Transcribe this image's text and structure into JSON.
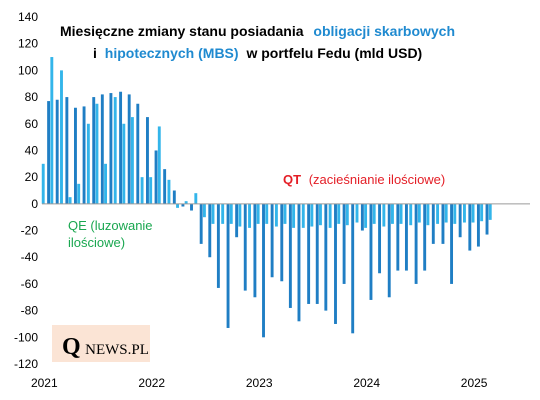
{
  "chart_data": {
    "type": "bar",
    "title_line1_prefix": "Miesięczne zmiany stanu posiadania",
    "title_line1_highlight": "obligacji skarbowych",
    "title_line2_prefix": "i",
    "title_line2_highlight": "hipotecznych (MBS)",
    "title_line2_suffix": "w portfelu Fedu (mld USD)",
    "ylim": [
      -120,
      140
    ],
    "y_ticks": [
      "140",
      "120",
      "100",
      "80",
      "60",
      "40",
      "20",
      "0",
      "-20",
      "-40",
      "-60",
      "-80",
      "-100",
      "-120"
    ],
    "x_ticks": [
      "2021",
      "2022",
      "2023",
      "2024",
      "2025"
    ],
    "x_tick_values": [
      2021,
      2022,
      2023,
      2024,
      2025
    ],
    "series": [
      {
        "name": "obligacje skarbowe",
        "color": "#1f7ec4",
        "x": [
          2021.04,
          2021.12,
          2021.21,
          2021.29,
          2021.37,
          2021.46,
          2021.54,
          2021.62,
          2021.71,
          2021.79,
          2021.87,
          2021.96,
          2022.04,
          2022.12,
          2022.21,
          2022.29,
          2022.37,
          2022.46,
          2022.54,
          2022.62,
          2022.71,
          2022.79,
          2022.87,
          2022.96,
          2023.04,
          2023.12,
          2023.21,
          2023.29,
          2023.37,
          2023.46,
          2023.54,
          2023.62,
          2023.71,
          2023.79,
          2023.87,
          2023.96,
          2024.04,
          2024.12,
          2024.21,
          2024.29,
          2024.37,
          2024.46,
          2024.54,
          2024.62,
          2024.71,
          2024.79,
          2024.87,
          2024.96,
          2025.04,
          2025.12
        ],
        "values": [
          77,
          78,
          80,
          72,
          73,
          80,
          82,
          83,
          84,
          82,
          75,
          65,
          40,
          26,
          10,
          -2,
          -5,
          -30,
          -40,
          -63,
          -93,
          -25,
          -65,
          -70,
          -100,
          -55,
          -58,
          -78,
          -88,
          -75,
          -75,
          -80,
          -90,
          -60,
          -97,
          -20,
          -72,
          -52,
          -70,
          -50,
          -50,
          -60,
          -50,
          -30,
          -30,
          -60,
          -25,
          -35,
          -32,
          -23
        ]
      },
      {
        "name": "hipoteczne (MBS)",
        "color": "#33b5ea",
        "x": [
          2020.99,
          2021.07,
          2021.16,
          2021.24,
          2021.32,
          2021.41,
          2021.49,
          2021.57,
          2021.66,
          2021.74,
          2021.82,
          2021.91,
          2021.99,
          2022.07,
          2022.16,
          2022.24,
          2022.32,
          2022.41,
          2022.49,
          2022.57,
          2022.66,
          2022.74,
          2022.82,
          2022.91,
          2022.99,
          2023.07,
          2023.16,
          2023.24,
          2023.32,
          2023.41,
          2023.49,
          2023.57,
          2023.66,
          2023.74,
          2023.82,
          2023.91,
          2023.99,
          2024.07,
          2024.16,
          2024.24,
          2024.32,
          2024.41,
          2024.49,
          2024.57,
          2024.66,
          2024.74,
          2024.82,
          2024.91,
          2024.99,
          2025.07,
          2025.15
        ],
        "values": [
          30,
          110,
          100,
          5,
          15,
          60,
          75,
          30,
          80,
          60,
          65,
          20,
          20,
          58,
          18,
          -3,
          2,
          8,
          -10,
          -15,
          -15,
          -15,
          -17,
          -18,
          -15,
          -15,
          -17,
          -15,
          -18,
          -18,
          -17,
          -16,
          -18,
          -15,
          -16,
          -14,
          -18,
          -15,
          -17,
          -15,
          -15,
          -16,
          -14,
          -16,
          -15,
          -14,
          -15,
          -14,
          -14,
          -13,
          -12
        ]
      }
    ],
    "annotations": {
      "qe_line1": "QE (luzowanie",
      "qe_line2": "ilościowe)",
      "qt_prefix": "QT",
      "qt_text": "(zacieśnianie ilościowe)"
    },
    "colors": {
      "qe": "#1aa750",
      "qt": "#e41e26",
      "title_highlight": "#1f8ad0",
      "title": "#000000",
      "logo_bg": "#fbe4d5"
    },
    "logo_q": "Q",
    "logo_text": "NEWS.PL"
  }
}
